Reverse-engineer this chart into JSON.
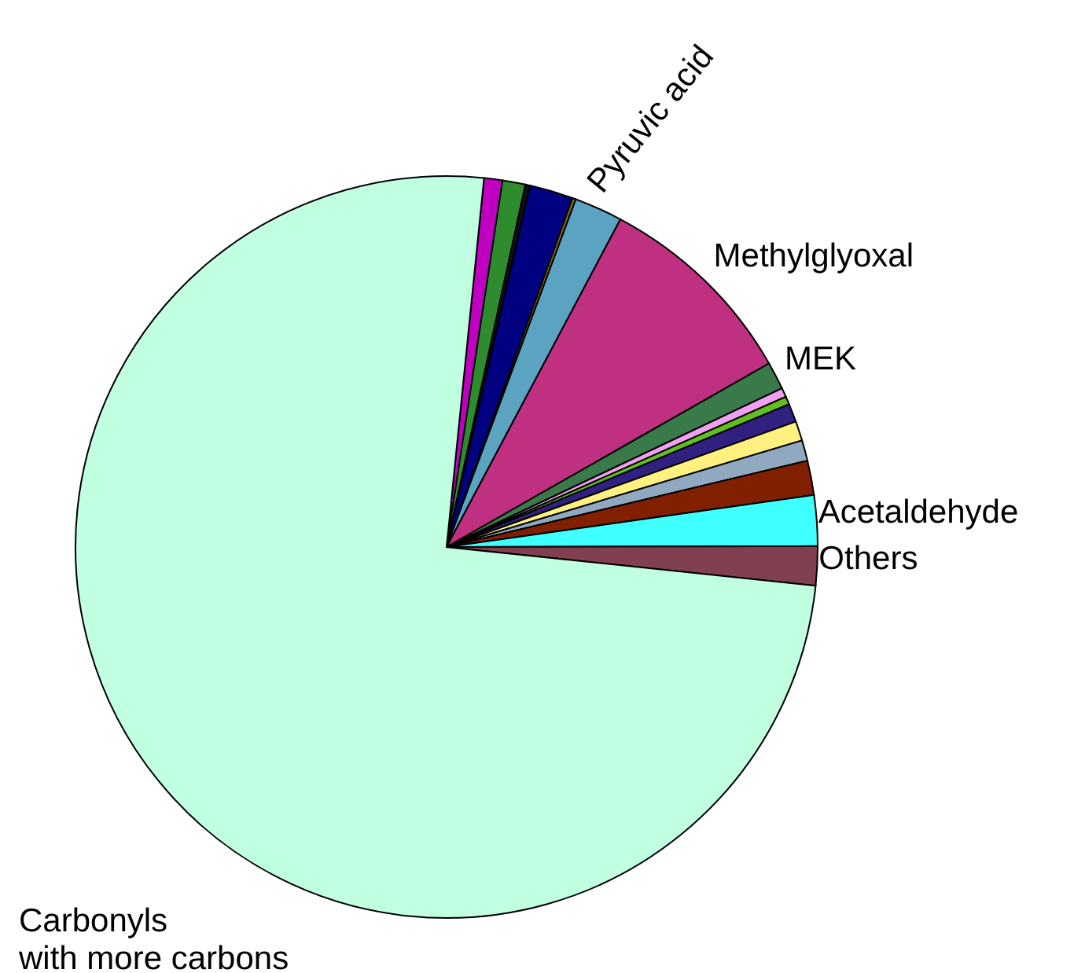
{
  "chart_data": {
    "type": "pie",
    "categories": [
      null,
      null,
      null,
      null,
      null,
      "Pyruvic acid",
      "Methylglyoxal",
      "MEK",
      null,
      null,
      null,
      null,
      null,
      null,
      "Acetaldehyde",
      "Others",
      "Carbonyls with more carbons"
    ],
    "values": [
      0.8,
      1,
      0.2,
      1.9,
      0.15,
      2.1,
      9,
      1.2,
      0.4,
      0.35,
      0.8,
      0.85,
      0.9,
      1.5,
      2.2,
      1.7,
      74.95
    ],
    "colors": [
      "#c000c0",
      "#2e8b2e",
      "#101010",
      "#000080",
      "#8b6914",
      "#5ba3c0",
      "#c03080",
      "#3a7a4a",
      "#f0a0f0",
      "#60c020",
      "#302080",
      "#fff080",
      "#90a8c0",
      "#802000",
      "#40ffff",
      "#804050",
      "#c0ffe0"
    ]
  }
}
